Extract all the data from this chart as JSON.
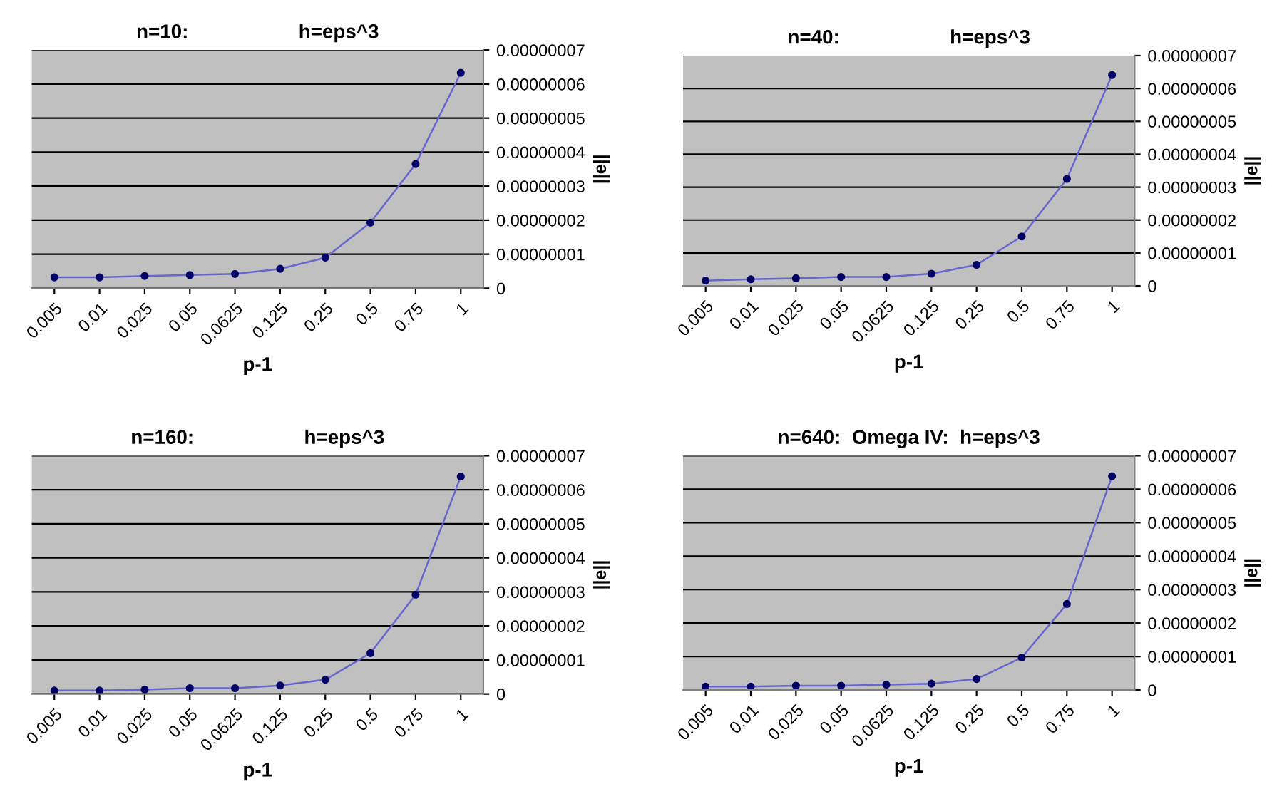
{
  "chart_data": [
    {
      "type": "line",
      "title": "n=10:                    h=eps^3",
      "xlabel": "p-1",
      "ylabel": "||e||",
      "categories": [
        "0.005",
        "0.01",
        "0.025",
        "0.05",
        "0.0625",
        "0.125",
        "0.25",
        "0.5",
        "0.75",
        "1"
      ],
      "series": [
        {
          "color": "#6666cc",
          "values": [
            3.2e-09,
            3.2e-09,
            3.6e-09,
            3.9e-09,
            4.2e-09,
            5.7e-09,
            9e-09,
            1.93e-08,
            3.65e-08,
            6.33e-08
          ]
        }
      ],
      "ylim": [
        0,
        7e-08
      ],
      "yticks": [
        0,
        {
          "value": 1e-08,
          "label": "0.00000001"
        },
        {
          "value": 2e-08,
          "label": "0.00000002"
        },
        {
          "value": 3e-08,
          "label": "0.00000003"
        },
        {
          "value": 4e-08,
          "label": "0.00000004"
        },
        {
          "value": 5e-08,
          "label": "0.00000005"
        },
        {
          "value": 6e-08,
          "label": "0.00000006"
        },
        {
          "value": 7e-08,
          "label": "0.00000007"
        }
      ],
      "grid": "y",
      "marker": "circle",
      "line_style": "solid"
    },
    {
      "type": "line",
      "title": "n=40:                    h=eps^3",
      "xlabel": "p-1",
      "ylabel": "||e||",
      "categories": [
        "0.005",
        "0.01",
        "0.025",
        "0.05",
        "0.0625",
        "0.125",
        "0.25",
        "0.5",
        "0.75",
        "1"
      ],
      "series": [
        {
          "color": "#6666cc",
          "values": [
            1.6e-09,
            2e-09,
            2.3e-09,
            2.7e-09,
            2.7e-09,
            3.7e-09,
            6.4e-09,
            1.5e-08,
            3.25e-08,
            6.41e-08
          ]
        }
      ],
      "ylim": [
        0,
        7e-08
      ],
      "yticks": [
        0,
        {
          "value": 1e-08,
          "label": "0.00000001"
        },
        {
          "value": 2e-08,
          "label": "0.00000002"
        },
        {
          "value": 3e-08,
          "label": "0.00000003"
        },
        {
          "value": 4e-08,
          "label": "0.00000004"
        },
        {
          "value": 5e-08,
          "label": "0.00000005"
        },
        {
          "value": 6e-08,
          "label": "0.00000006"
        },
        {
          "value": 7e-08,
          "label": "0.00000007"
        }
      ],
      "grid": "y",
      "marker": "circle",
      "line_style": "solid"
    },
    {
      "type": "line",
      "title": "n=160:                    h=eps^3",
      "xlabel": "p-1",
      "ylabel": "||e||",
      "categories": [
        "0.005",
        "0.01",
        "0.025",
        "0.05",
        "0.0625",
        "0.125",
        "0.25",
        "0.5",
        "0.75",
        "1"
      ],
      "series": [
        {
          "color": "#6666cc",
          "values": [
            1e-09,
            1e-09,
            1.3e-09,
            1.7e-09,
            1.7e-09,
            2.5e-09,
            4.2e-09,
            1.2e-08,
            2.92e-08,
            6.39e-08
          ]
        }
      ],
      "ylim": [
        0,
        7e-08
      ],
      "yticks": [
        0,
        {
          "value": 1e-08,
          "label": "0.00000001"
        },
        {
          "value": 2e-08,
          "label": "0.00000002"
        },
        {
          "value": 3e-08,
          "label": "0.00000003"
        },
        {
          "value": 4e-08,
          "label": "0.00000004"
        },
        {
          "value": 5e-08,
          "label": "0.00000005"
        },
        {
          "value": 6e-08,
          "label": "0.00000006"
        },
        {
          "value": 7e-08,
          "label": "0.00000007"
        }
      ],
      "grid": "y",
      "marker": "circle",
      "line_style": "solid"
    },
    {
      "type": "line",
      "title": "n=640:  Omega IV:  h=eps^3",
      "xlabel": "p-1",
      "ylabel": "||e||",
      "categories": [
        "0.005",
        "0.01",
        "0.025",
        "0.05",
        "0.0625",
        "0.125",
        "0.25",
        "0.5",
        "0.75",
        "1"
      ],
      "series": [
        {
          "color": "#6666cc",
          "values": [
            1e-09,
            1e-09,
            1.3e-09,
            1.3e-09,
            1.6e-09,
            1.9e-09,
            3.3e-09,
            9.7e-09,
            2.57e-08,
            6.39e-08
          ]
        }
      ],
      "ylim": [
        0,
        7e-08
      ],
      "yticks": [
        0,
        {
          "value": 1e-08,
          "label": "0.00000001"
        },
        {
          "value": 2e-08,
          "label": "0.00000002"
        },
        {
          "value": 3e-08,
          "label": "0.00000003"
        },
        {
          "value": 4e-08,
          "label": "0.00000004"
        },
        {
          "value": 5e-08,
          "label": "0.00000005"
        },
        {
          "value": 6e-08,
          "label": "0.00000006"
        },
        {
          "value": 7e-08,
          "label": "0.00000007"
        }
      ],
      "grid": "y",
      "marker": "circle",
      "line_style": "solid"
    }
  ]
}
